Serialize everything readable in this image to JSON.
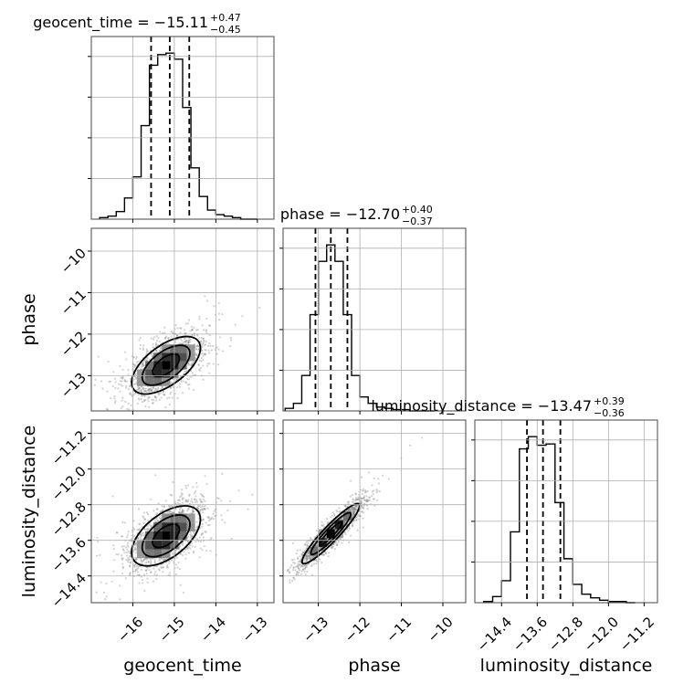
{
  "chart_data": {
    "type": "corner",
    "parameters": [
      "geocent_time",
      "phase",
      "luminosity_distance"
    ],
    "grid": true,
    "titles": [
      {
        "parameter": "geocent_time",
        "label": "geocent_time = −15.11",
        "plus": "+0.47",
        "minus": "−0.45"
      },
      {
        "parameter": "phase",
        "label": "phase = −12.70",
        "plus": "+0.40",
        "minus": "−0.37"
      },
      {
        "parameter": "luminosity_distance",
        "label": "luminosity_distance = −13.47",
        "plus": "+0.39",
        "minus": "−0.36"
      }
    ],
    "axes": {
      "geocent_time": {
        "range": [
          -17.0,
          -12.6
        ],
        "ticks": [
          -16,
          -15,
          -14,
          -13
        ],
        "tick_labels": [
          "−16",
          "−15",
          "−14",
          "−13"
        ]
      },
      "phase": {
        "range": [
          -13.85,
          -9.45
        ],
        "ticks": [
          -13,
          -12,
          -11,
          -10
        ],
        "tick_labels": [
          "−13",
          "−12",
          "−11",
          "−10"
        ]
      },
      "luminosity_distance": {
        "range": [
          -15.0,
          -10.9
        ],
        "ticks": [
          -14.4,
          -13.6,
          -12.8,
          -12.0,
          -11.2
        ],
        "tick_labels": [
          "−14.4",
          "−13.6",
          "−12.8",
          "−12.0",
          "−11.2"
        ]
      }
    },
    "histograms": [
      {
        "parameter": "geocent_time",
        "bin_edges": [
          -16.8,
          -16.6,
          -16.4,
          -16.2,
          -16.0,
          -15.8,
          -15.6,
          -15.4,
          -15.2,
          -15.0,
          -14.8,
          -14.6,
          -14.4,
          -14.2,
          -14.0,
          -13.8,
          -13.6,
          -13.4,
          -13.2,
          -13.0
        ],
        "counts": [
          1,
          2,
          5,
          14,
          28,
          62,
          102,
          109,
          110,
          106,
          74,
          34,
          15,
          6,
          3,
          2,
          1,
          0,
          0
        ],
        "quantiles": [
          -15.56,
          -15.11,
          -14.64
        ]
      },
      {
        "parameter": "phase",
        "bin_edges": [
          -13.8,
          -13.6,
          -13.4,
          -13.2,
          -13.0,
          -12.8,
          -12.6,
          -12.4,
          -12.2,
          -12.0,
          -11.8,
          -11.6,
          -11.4,
          -11.2,
          -11.0,
          -10.8,
          -10.6,
          -10.4,
          -10.2
        ],
        "counts": [
          2,
          6,
          28,
          76,
          118,
          131,
          118,
          76,
          28,
          11,
          6,
          3,
          2,
          1,
          1,
          0,
          0,
          0
        ],
        "quantiles": [
          -13.07,
          -12.7,
          -12.3
        ]
      },
      {
        "parameter": "luminosity_distance",
        "bin_edges": [
          -14.8,
          -14.6,
          -14.4,
          -14.2,
          -14.0,
          -13.8,
          -13.6,
          -13.4,
          -13.2,
          -13.0,
          -12.8,
          -12.6,
          -12.4,
          -12.2,
          -12.0,
          -11.8,
          -11.6,
          -11.4
        ],
        "counts": [
          1,
          5,
          18,
          58,
          126,
          136,
          129,
          130,
          82,
          36,
          15,
          7,
          4,
          2,
          1,
          1,
          0
        ],
        "quantiles": [
          -13.83,
          -13.47,
          -13.08
        ]
      }
    ],
    "joint": [
      {
        "x": "geocent_time",
        "y": "phase",
        "center": [
          -15.2,
          -12.75
        ],
        "correlation": 0.6
      },
      {
        "x": "geocent_time",
        "y": "luminosity_distance",
        "center": [
          -15.2,
          -13.5
        ],
        "correlation": 0.55
      },
      {
        "x": "phase",
        "y": "luminosity_distance",
        "center": [
          -12.7,
          -13.45
        ],
        "correlation": 0.93
      }
    ]
  },
  "colors": {
    "line": "#000000",
    "grid": "#b0b0b0",
    "scatter": "#7f7f7f"
  }
}
